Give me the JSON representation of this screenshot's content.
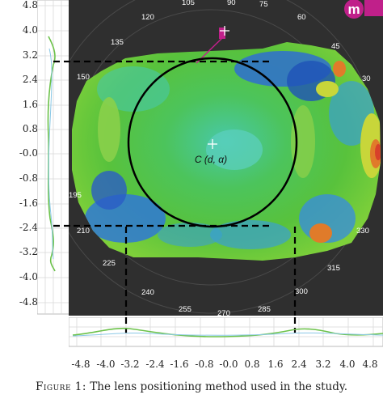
{
  "figure": {
    "caption_label": "Figure 1:",
    "caption_text": " The lens positioning method used in the study.",
    "center_label": "C (d, α)"
  },
  "axes": {
    "y_ticks": [
      "4.8",
      "4.0",
      "3.2",
      "2.4",
      "1.6",
      "0.8",
      "-0.0",
      "-0.8",
      "-1.6",
      "-2.4",
      "-3.2",
      "-4.0",
      "-4.8"
    ],
    "x_ticks": [
      "-4.8",
      "-4.0",
      "-3.2",
      "-2.4",
      "-1.6",
      "-0.8",
      "-0.0",
      "0.8",
      "1.6",
      "2.4",
      "3.2",
      "4.0",
      "4.8"
    ]
  },
  "angle_labels": [
    "105",
    "90",
    "75",
    "120",
    "60",
    "135",
    "45",
    "150",
    "30",
    "195",
    "210",
    "225",
    "240",
    "255",
    "270",
    "285",
    "300",
    "315",
    "330"
  ],
  "logo_text": "m",
  "colors": {
    "background_dark": "#2f2f2f",
    "map_green": "#4ec24a",
    "map_cyan": "#39c7b0",
    "map_blue": "#2f6fd0",
    "map_yellow": "#c8d63a",
    "map_orange": "#e07b2a",
    "map_red": "#d8402a",
    "logo": "#c0208a"
  }
}
